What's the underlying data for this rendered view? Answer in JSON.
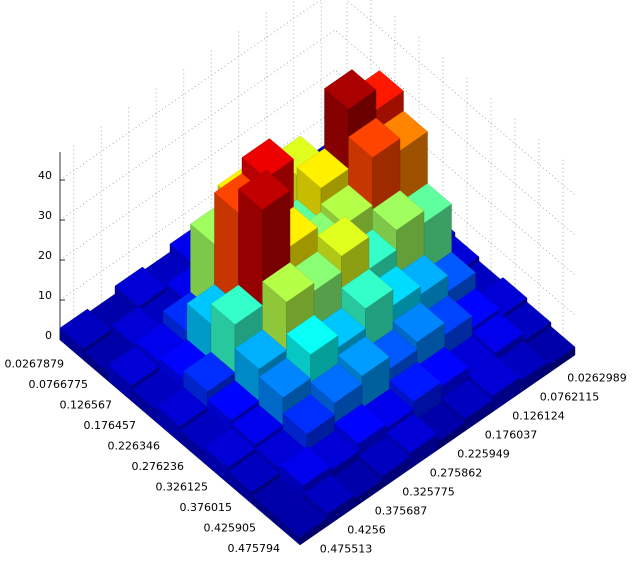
{
  "chart_data": {
    "type": "bar3",
    "x_categories": [
      "0.0267879",
      "0.0766775",
      "0.126567",
      "0.176457",
      "0.226346",
      "0.276236",
      "0.326125",
      "0.376015",
      "0.425905",
      "0.475794"
    ],
    "y_categories": [
      "0.0262989",
      "0.0762115",
      "0.126124",
      "0.176037",
      "0.225949",
      "0.275862",
      "0.325775",
      "0.375687",
      "0.4256",
      "0.475513"
    ],
    "values": [
      [
        3,
        2,
        4,
        3,
        2,
        5,
        3,
        4,
        2,
        3
      ],
      [
        4,
        3,
        6,
        5,
        4,
        6,
        5,
        3,
        4,
        2
      ],
      [
        5,
        12,
        20,
        28,
        18,
        30,
        25,
        8,
        5,
        4
      ],
      [
        6,
        40,
        45,
        30,
        22,
        42,
        38,
        15,
        6,
        3
      ],
      [
        5,
        35,
        38,
        26,
        24,
        30,
        44,
        20,
        8,
        4
      ],
      [
        4,
        22,
        25,
        20,
        28,
        24,
        26,
        14,
        6,
        3
      ],
      [
        3,
        10,
        14,
        16,
        20,
        15,
        18,
        12,
        5,
        4
      ],
      [
        4,
        6,
        9,
        12,
        10,
        13,
        11,
        8,
        4,
        3
      ],
      [
        3,
        5,
        4,
        6,
        7,
        5,
        6,
        4,
        5,
        2
      ],
      [
        2,
        3,
        4,
        3,
        2,
        4,
        3,
        2,
        3,
        2
      ]
    ],
    "zlim": [
      0,
      47
    ],
    "zticks": [
      0,
      10,
      20,
      30,
      40
    ],
    "grid": true,
    "colormap": "jet"
  }
}
